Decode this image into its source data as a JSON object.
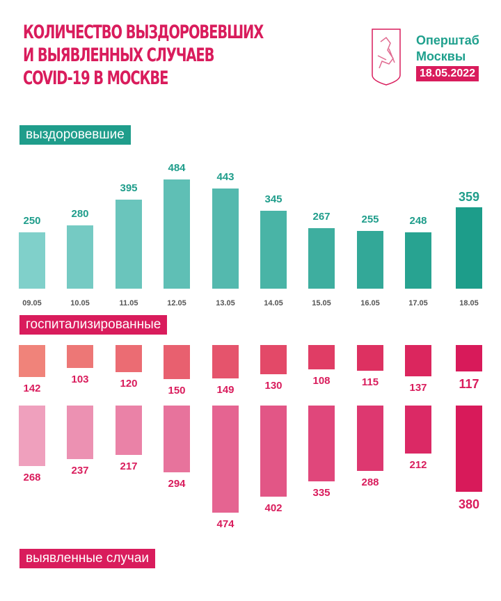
{
  "header": {
    "title_lines": [
      "КОЛИЧЕСТВО ВЫЗДОРОВЕВШИХ",
      "И ВЫЯВЛЕННЫХ СЛУЧАЕВ",
      "COVID-19 В МОСКВЕ"
    ],
    "org_lines": [
      "Оперштаб",
      "Москвы"
    ],
    "date": "18.05.2022",
    "logo": "moscow-coat-of-arms"
  },
  "colors": {
    "title": "#d91c5c",
    "recovered_from": "#80d0ca",
    "recovered_to": "#1d9d8a",
    "hosp_from": "#f0837a",
    "hosp_to": "#d81a5a",
    "cases_from": "#efa0bd",
    "cases_to": "#d81a5a"
  },
  "chart_data": {
    "type": "bar",
    "categories": [
      "09.05",
      "10.05",
      "11.05",
      "12.05",
      "13.05",
      "14.05",
      "15.05",
      "16.05",
      "17.05",
      "18.05"
    ],
    "series": [
      {
        "name": "выздоровевшие",
        "values": [
          250,
          280,
          395,
          484,
          443,
          345,
          267,
          255,
          248,
          359
        ]
      },
      {
        "name": "госпитализированные",
        "values": [
          142,
          103,
          120,
          150,
          149,
          130,
          108,
          115,
          137,
          117
        ]
      },
      {
        "name": "выявленные случаи",
        "values": [
          268,
          237,
          217,
          294,
          474,
          402,
          335,
          288,
          212,
          380
        ]
      }
    ]
  }
}
